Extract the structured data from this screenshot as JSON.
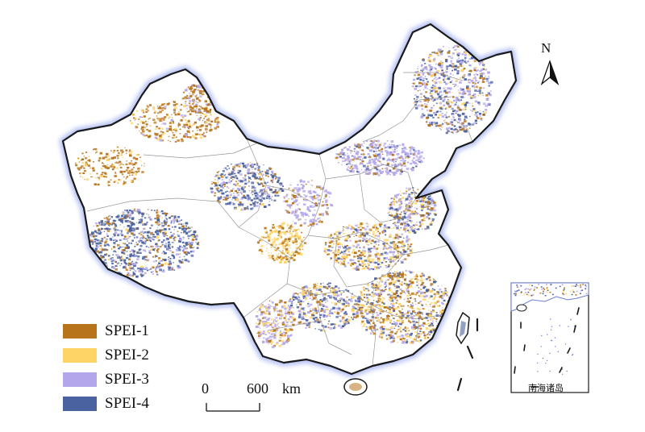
{
  "map": {
    "north_label": "N",
    "inset_caption": "南海诸岛",
    "colors": {
      "SPEI-1": "#b8741a",
      "SPEI-2": "#ffd466",
      "SPEI-3": "#b3a6ea",
      "SPEI-4": "#4a62a0",
      "border": "#1a1a1a",
      "coast_glow": "#a9b7f2",
      "province_lines": "#8c8c8c"
    }
  },
  "legend": {
    "items": [
      {
        "label": "SPEI-1",
        "color": "#b8741a"
      },
      {
        "label": "SPEI-2",
        "color": "#ffd466"
      },
      {
        "label": "SPEI-3",
        "color": "#b3a6ea"
      },
      {
        "label": "SPEI-4",
        "color": "#4a62a0"
      }
    ]
  },
  "scale_bar": {
    "start": "0",
    "end": "600",
    "unit": "km"
  }
}
